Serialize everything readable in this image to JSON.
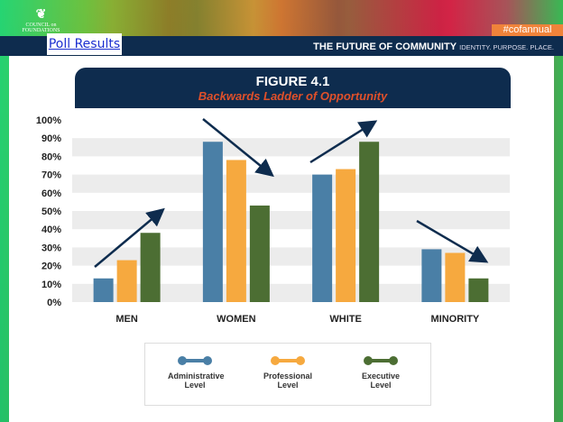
{
  "header": {
    "logo_text": "COUNCIL on FOUNDATIONS",
    "hashtag": "#cofannual",
    "poll_link": "Poll Results",
    "tagline_bold": "THE FUTURE OF COMMUNITY",
    "tagline_light": "IDENTITY. PURPOSE. PLACE."
  },
  "chart_data": {
    "type": "bar",
    "title": "FIGURE 4.1",
    "subtitle": "Backwards Ladder of Opportunity",
    "categories": [
      "MEN",
      "WOMEN",
      "WHITE",
      "MINORITY"
    ],
    "series": [
      {
        "name": "Administrative Level",
        "color": "#4a7fa6",
        "values": [
          13,
          88,
          70,
          29
        ]
      },
      {
        "name": "Professional Level",
        "color": "#f6a93f",
        "values": [
          23,
          78,
          73,
          27
        ]
      },
      {
        "name": "Executive Level",
        "color": "#4c6e33",
        "values": [
          38,
          53,
          88,
          13
        ]
      }
    ],
    "ylim": [
      0,
      100
    ],
    "yticks": [
      "0%",
      "10%",
      "20%",
      "30%",
      "40%",
      "50%",
      "60%",
      "70%",
      "80%",
      "90%",
      "100%"
    ],
    "trend_arrows": [
      "up",
      "down",
      "up",
      "down"
    ],
    "legend": "bottom",
    "grid": "alternating bands"
  }
}
